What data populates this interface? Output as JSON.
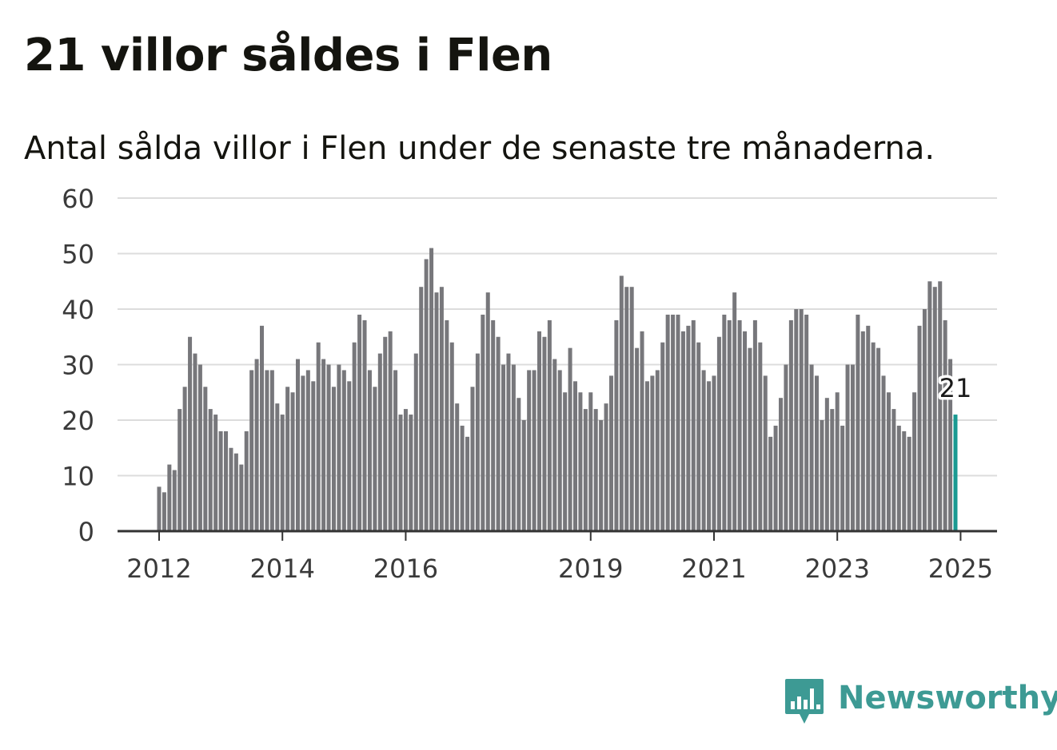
{
  "header": {
    "title": "21 villor såldes i Flen",
    "subtitle": "Antal sålda villor i Flen under de senaste tre månaderna."
  },
  "brand": {
    "name": "Newsworthy",
    "color": "#3d9a94",
    "icon": "bar-chart-speech-bubble-icon"
  },
  "colors": {
    "bar": "#77777b",
    "highlight": "#1a9a92",
    "grid": "#dcdcdc",
    "axis": "#333333"
  },
  "chart_data": {
    "type": "bar",
    "title": "21 villor såldes i Flen",
    "subtitle": "Antal sålda villor i Flen under de senaste tre månaderna.",
    "xlabel": "",
    "ylabel": "",
    "ylim": [
      0,
      60
    ],
    "yticks": [
      "0",
      "10",
      "20",
      "30",
      "40",
      "50",
      "60"
    ],
    "xticks": [
      "2012",
      "2014",
      "2016",
      "2019",
      "2021",
      "2023",
      "2025"
    ],
    "grid": true,
    "legend": "none",
    "start": "2012-01",
    "end": "2025-01",
    "frequency": "monthly",
    "values": [
      8,
      7,
      12,
      11,
      22,
      26,
      35,
      32,
      30,
      26,
      22,
      21,
      18,
      18,
      15,
      14,
      12,
      18,
      29,
      31,
      37,
      29,
      29,
      23,
      21,
      26,
      25,
      31,
      28,
      29,
      27,
      34,
      31,
      30,
      26,
      30,
      29,
      27,
      34,
      39,
      38,
      29,
      26,
      32,
      35,
      36,
      29,
      21,
      22,
      21,
      32,
      44,
      49,
      51,
      43,
      44,
      38,
      34,
      23,
      19,
      17,
      26,
      32,
      39,
      43,
      38,
      35,
      30,
      32,
      30,
      24,
      20,
      29,
      29,
      36,
      35,
      38,
      31,
      29,
      25,
      33,
      27,
      25,
      22,
      25,
      22,
      20,
      23,
      28,
      38,
      46,
      44,
      44,
      33,
      36,
      27,
      28,
      29,
      34,
      39,
      39,
      39,
      36,
      37,
      38,
      34,
      29,
      27,
      28,
      35,
      39,
      38,
      43,
      38,
      36,
      33,
      38,
      34,
      28,
      17,
      19,
      24,
      30,
      38,
      40,
      40,
      39,
      30,
      28,
      20,
      24,
      22,
      25,
      19,
      30,
      30,
      39,
      36,
      37,
      34,
      33,
      28,
      25,
      22,
      19,
      18,
      17,
      25,
      37,
      40,
      45,
      44,
      45,
      38,
      31,
      21
    ],
    "highlight_last": true,
    "highlight_value": "21"
  }
}
